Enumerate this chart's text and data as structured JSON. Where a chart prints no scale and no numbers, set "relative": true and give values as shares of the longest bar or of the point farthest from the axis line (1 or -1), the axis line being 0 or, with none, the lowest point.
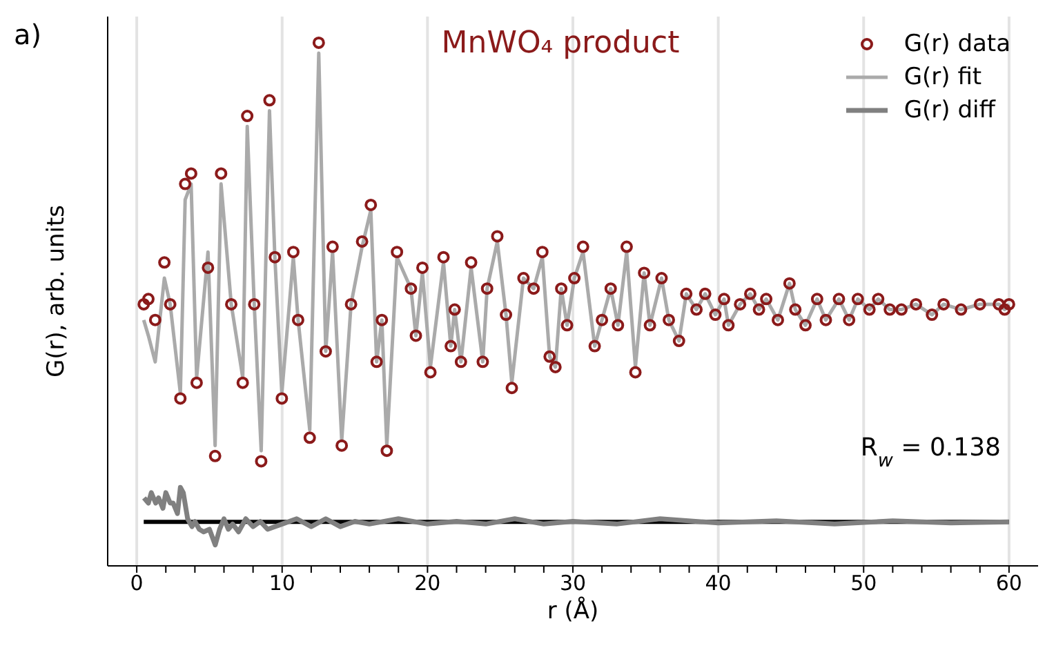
{
  "chart_data": {
    "type": "scatter",
    "title": "MnWO₄ product",
    "xlabel": "r (Å)",
    "ylabel": "G(r), arb. units",
    "relative": true,
    "xlim": [
      -2,
      62
    ],
    "xticks": [
      0,
      {
        "value": 2,
        "label": null
      },
      {
        "value": 4,
        "label": null
      },
      {
        "value": 6,
        "label": null
      },
      {
        "value": 8,
        "label": null
      },
      10,
      {
        "value": 12,
        "label": null
      },
      {
        "value": 14,
        "label": null
      },
      {
        "value": 16,
        "label": null
      },
      {
        "value": 18,
        "label": null
      },
      20,
      {
        "value": 22,
        "label": null
      },
      {
        "value": 24,
        "label": null
      },
      {
        "value": 26,
        "label": null
      },
      {
        "value": 28,
        "label": null
      },
      30,
      {
        "value": 32,
        "label": null
      },
      {
        "value": 34,
        "label": null
      },
      {
        "value": 36,
        "label": null
      },
      {
        "value": 38,
        "label": null
      },
      40,
      {
        "value": 42,
        "label": null
      },
      {
        "value": 44,
        "label": null
      },
      {
        "value": 46,
        "label": null
      },
      {
        "value": 48,
        "label": null
      },
      50,
      {
        "value": 52,
        "label": null
      },
      {
        "value": 54,
        "label": null
      },
      {
        "value": 56,
        "label": null
      },
      {
        "value": 58,
        "label": null
      },
      60
    ],
    "grid": "x",
    "legend": "top right",
    "annotations": [
      "a)",
      "R$_{w}$ = 0.138"
    ],
    "ref_lines": [
      {
        "axis": "y",
        "value": 0.084,
        "color": "#000000"
      }
    ],
    "series": [
      {
        "name": "G(r) data",
        "marker": "circle",
        "color": "#8b1a1a",
        "x": [
          0.48,
          0.8,
          1.27,
          1.9,
          2.3,
          3.0,
          3.33,
          3.74,
          4.12,
          4.9,
          5.39,
          5.8,
          6.5,
          7.29,
          7.6,
          8.08,
          8.56,
          9.13,
          9.5,
          9.98,
          10.77,
          11.1,
          11.9,
          12.52,
          13.0,
          13.47,
          14.1,
          14.74,
          15.5,
          16.1,
          16.5,
          16.86,
          17.2,
          17.9,
          18.86,
          19.2,
          19.65,
          20.2,
          21.1,
          21.6,
          21.87,
          22.3,
          23.0,
          23.8,
          24.1,
          24.8,
          25.4,
          25.8,
          26.6,
          27.3,
          27.9,
          28.4,
          28.8,
          29.2,
          29.6,
          30.1,
          30.7,
          31.5,
          32.0,
          32.6,
          33.1,
          33.7,
          34.3,
          34.9,
          35.3,
          36.1,
          36.6,
          37.3,
          37.8,
          38.5,
          39.1,
          39.8,
          40.4,
          40.7,
          41.5,
          42.2,
          42.8,
          43.3,
          44.1,
          44.9,
          45.3,
          46.0,
          46.8,
          47.4,
          48.3,
          49.0,
          49.6,
          50.4,
          51.0,
          51.8,
          52.6,
          53.6,
          54.7,
          55.5,
          56.7,
          58.0,
          59.3,
          59.7,
          60.0
        ],
        "values": [
          0.5,
          0.51,
          0.47,
          0.58,
          0.5,
          0.32,
          0.73,
          0.75,
          0.35,
          0.57,
          0.21,
          0.75,
          0.5,
          0.35,
          0.86,
          0.5,
          0.2,
          0.89,
          0.59,
          0.32,
          0.6,
          0.47,
          0.245,
          1.0,
          0.41,
          0.61,
          0.23,
          0.5,
          0.62,
          0.69,
          0.39,
          0.47,
          0.22,
          0.6,
          0.53,
          0.44,
          0.57,
          0.37,
          0.59,
          0.42,
          0.49,
          0.39,
          0.58,
          0.39,
          0.53,
          0.63,
          0.48,
          0.34,
          0.55,
          0.53,
          0.6,
          0.4,
          0.38,
          0.53,
          0.46,
          0.55,
          0.61,
          0.42,
          0.47,
          0.53,
          0.46,
          0.61,
          0.37,
          0.56,
          0.46,
          0.55,
          0.47,
          0.43,
          0.52,
          0.49,
          0.52,
          0.48,
          0.51,
          0.46,
          0.5,
          0.52,
          0.49,
          0.51,
          0.47,
          0.54,
          0.49,
          0.46,
          0.51,
          0.47,
          0.51,
          0.47,
          0.51,
          0.49,
          0.51,
          0.49,
          0.49,
          0.5,
          0.48,
          0.5,
          0.49,
          0.5,
          0.5,
          0.49,
          0.5
        ]
      },
      {
        "name": "G(r) fit",
        "type": "line",
        "marker": "none",
        "color": "#aaaaaa",
        "x": [
          0.48,
          0.8,
          1.27,
          1.9,
          2.3,
          3.0,
          3.33,
          3.74,
          4.12,
          4.9,
          5.39,
          5.8,
          6.5,
          7.29,
          7.6,
          8.08,
          8.56,
          9.13,
          9.5,
          9.98,
          10.77,
          11.1,
          11.9,
          12.52,
          13.0,
          13.47,
          14.1,
          14.74,
          15.5,
          16.1,
          16.5,
          16.86,
          17.2,
          17.9,
          18.86,
          19.2,
          19.65,
          20.2,
          21.1,
          21.6,
          21.87,
          22.3,
          23.0,
          23.8,
          24.1,
          24.8,
          25.4,
          25.8,
          26.6,
          27.3,
          27.9,
          28.4,
          28.8,
          29.2,
          29.6,
          30.1,
          30.7,
          31.5,
          32.0,
          32.6,
          33.1,
          33.7,
          34.3,
          34.9,
          35.3,
          36.1,
          36.6,
          37.3,
          37.8,
          38.5,
          39.1,
          39.8,
          40.4,
          40.7,
          41.5,
          42.2,
          42.8,
          43.3,
          44.1,
          44.9,
          45.3,
          46.0,
          46.8,
          47.4,
          48.3,
          49.0,
          49.6,
          50.4,
          51.0,
          51.8,
          52.6,
          53.6,
          54.7,
          55.5,
          56.7,
          58.0,
          59.3,
          59.7,
          60.0
        ],
        "values": [
          0.47,
          0.44,
          0.39,
          0.55,
          0.5,
          0.33,
          0.7,
          0.73,
          0.36,
          0.6,
          0.23,
          0.73,
          0.5,
          0.36,
          0.84,
          0.5,
          0.22,
          0.87,
          0.59,
          0.33,
          0.59,
          0.47,
          0.26,
          0.98,
          0.41,
          0.6,
          0.24,
          0.5,
          0.61,
          0.68,
          0.39,
          0.47,
          0.23,
          0.59,
          0.53,
          0.44,
          0.56,
          0.38,
          0.58,
          0.42,
          0.49,
          0.39,
          0.57,
          0.39,
          0.53,
          0.62,
          0.48,
          0.35,
          0.55,
          0.53,
          0.59,
          0.4,
          0.38,
          0.53,
          0.46,
          0.55,
          0.6,
          0.42,
          0.47,
          0.53,
          0.46,
          0.6,
          0.38,
          0.56,
          0.46,
          0.55,
          0.47,
          0.43,
          0.52,
          0.49,
          0.52,
          0.48,
          0.51,
          0.46,
          0.5,
          0.52,
          0.49,
          0.51,
          0.47,
          0.54,
          0.49,
          0.46,
          0.51,
          0.47,
          0.51,
          0.47,
          0.51,
          0.49,
          0.51,
          0.49,
          0.49,
          0.5,
          0.48,
          0.5,
          0.49,
          0.5,
          0.5,
          0.49,
          0.5
        ]
      },
      {
        "name": "G(r) diff",
        "type": "line",
        "marker": "none",
        "color": "#808080",
        "x": [
          0.5,
          0.8,
          1.0,
          1.3,
          1.5,
          1.8,
          2.0,
          2.3,
          2.5,
          2.8,
          3.0,
          3.2,
          3.5,
          3.8,
          4.0,
          4.3,
          4.6,
          5.0,
          5.4,
          5.7,
          6.0,
          6.3,
          6.6,
          7.0,
          7.5,
          8.0,
          8.5,
          9.0,
          10.0,
          11.0,
          12.0,
          13.0,
          14.0,
          15.0,
          16.0,
          18.0,
          20.0,
          22.0,
          24.0,
          26.0,
          28.0,
          30.0,
          33.0,
          36.0,
          40.0,
          44.0,
          48.0,
          52.0,
          56.0,
          60.0
        ],
        "values": [
          0.13,
          0.12,
          0.14,
          0.12,
          0.13,
          0.11,
          0.14,
          0.12,
          0.12,
          0.1,
          0.15,
          0.14,
          0.09,
          0.075,
          0.085,
          0.07,
          0.065,
          0.07,
          0.04,
          0.07,
          0.09,
          0.07,
          0.08,
          0.065,
          0.09,
          0.075,
          0.085,
          0.07,
          0.08,
          0.09,
          0.075,
          0.09,
          0.075,
          0.085,
          0.08,
          0.09,
          0.08,
          0.085,
          0.08,
          0.09,
          0.08,
          0.085,
          0.08,
          0.09,
          0.082,
          0.086,
          0.08,
          0.086,
          0.082,
          0.084
        ]
      }
    ]
  }
}
